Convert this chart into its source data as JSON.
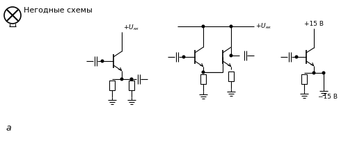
{
  "title": "Негодные схемы",
  "background_color": "#ffffff",
  "line_color": "#000000",
  "fig_width": 5.0,
  "fig_height": 2.06,
  "dpi": 100,
  "label_a": "а"
}
